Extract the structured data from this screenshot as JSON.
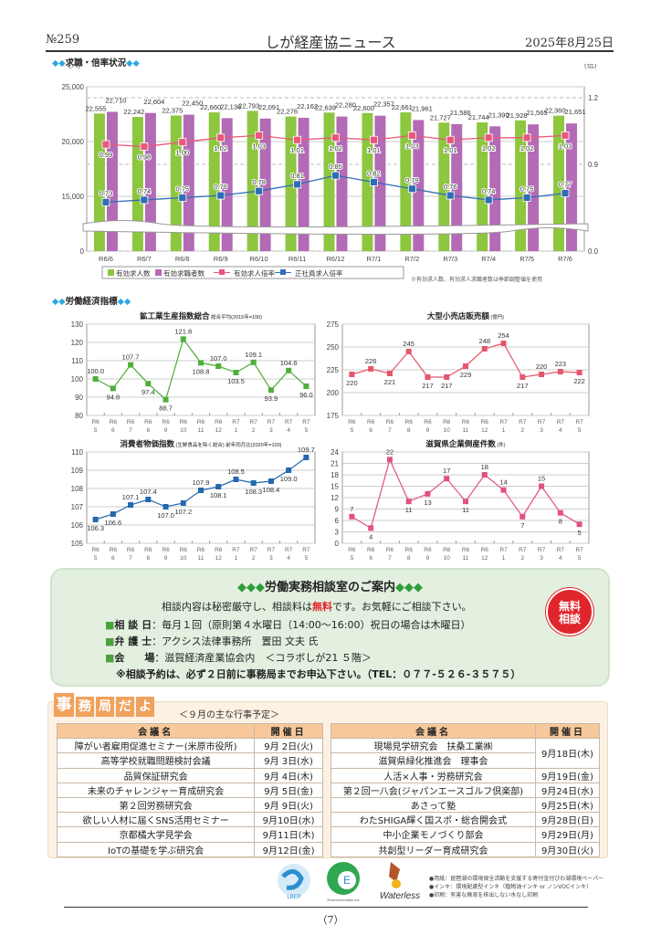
{
  "header": {
    "issue": "№259",
    "title": "しが経産協ニュース",
    "date": "2025年8月25日"
  },
  "section1": {
    "title": "求職・倍率状況"
  },
  "section2": {
    "title": "労働経済指標"
  },
  "chart_data": [
    {
      "type": "bar",
      "title": "求職・倍率状況",
      "ylabel": "(人)",
      "y2label": "(倍)",
      "ylim": [
        0,
        25000
      ],
      "y2lim": [
        0,
        1.2
      ],
      "yticks": [
        "25,000",
        "20,000",
        "15,000",
        "0"
      ],
      "y2ticks": [
        "1.2",
        "0.9",
        "0.0"
      ],
      "categories": [
        "R6/6",
        "R6/7",
        "R6/8",
        "R6/9",
        "R6/10",
        "R6/11",
        "R6/12",
        "R7/1",
        "R7/2",
        "R7/3",
        "R7/4",
        "R7/5",
        "R7/6"
      ],
      "series": [
        {
          "name": "有効求人数",
          "type": "bar",
          "color": "#8dc63f",
          "values": [
            22555,
            22242,
            22375,
            22660,
            22793,
            22276,
            22639,
            22600,
            22661,
            21727,
            21744,
            21928,
            22360
          ],
          "labels": [
            "22,555",
            "22,242",
            "22,375",
            "22,660",
            "22,793",
            "22,276",
            "22,639",
            "22,600",
            "22,661",
            "21,727",
            "21,744",
            "21,928",
            "22,360"
          ]
        },
        {
          "name": "有効求職者数",
          "type": "bar",
          "color": "#b36bb5",
          "values": [
            22710,
            22604,
            22450,
            22136,
            22091,
            22162,
            22280,
            22357,
            21961,
            21586,
            21390,
            21565,
            21651
          ],
          "labels": [
            "22,710",
            "22,604",
            "22,450",
            "22,136",
            "22,091",
            "22,162",
            "22,280",
            "22,357",
            "21,961",
            "21,586",
            "21,390",
            "21,565",
            "21,651"
          ]
        },
        {
          "name": "有効求人倍率",
          "type": "line",
          "color": "#e9577a",
          "values": [
            0.99,
            0.98,
            1.0,
            1.02,
            1.03,
            1.01,
            1.02,
            1.01,
            1.03,
            1.01,
            1.02,
            1.02,
            1.03
          ],
          "labels": [
            "0.99",
            "0.98",
            "1.00",
            "1.02",
            "1.03",
            "1.01",
            "1.02",
            "1.01",
            "1.03",
            "1.01",
            "1.02",
            "1.02",
            "1.03"
          ]
        },
        {
          "name": "正社員求人倍率",
          "type": "line",
          "color": "#2f6db5",
          "values": [
            0.73,
            0.74,
            0.75,
            0.76,
            0.78,
            0.81,
            0.85,
            0.82,
            0.79,
            0.76,
            0.74,
            0.75,
            0.77
          ],
          "labels": [
            "0.73",
            "0.74",
            "0.75",
            "0.76",
            "0.78",
            "0.81",
            "0.85",
            "0.82",
            "0.79",
            "0.76",
            "0.74",
            "0.75",
            "0.77"
          ]
        }
      ],
      "note": "※有効求人数、有効求人求職者数は季節調整値を使用"
    },
    {
      "type": "line",
      "title": "鉱工業生産指数総合",
      "subtitle": "総合平均(2015年=100)",
      "color": "#4fae3a",
      "ylim": [
        80,
        130
      ],
      "yticks": [
        130,
        120,
        110,
        100,
        90,
        80
      ],
      "categories": [
        [
          "R6",
          "5"
        ],
        [
          "R6",
          "6"
        ],
        [
          "R6",
          "7"
        ],
        [
          "R6",
          "8"
        ],
        [
          "R6",
          "9"
        ],
        [
          "R6",
          "10"
        ],
        [
          "R6",
          "11"
        ],
        [
          "R6",
          "12"
        ],
        [
          "R7",
          "1"
        ],
        [
          "R7",
          "2"
        ],
        [
          "R7",
          "3"
        ],
        [
          "R7",
          "4"
        ],
        [
          "R7",
          "5"
        ]
      ],
      "values": [
        100.0,
        94.8,
        107.7,
        97.4,
        88.7,
        121.8,
        108.8,
        107.0,
        103.5,
        109.1,
        93.9,
        104.6,
        96.0
      ],
      "labels": [
        "100.0",
        "94.8",
        "107.7",
        "97.4",
        "88.7",
        "121.8",
        "108.8",
        "107.0",
        "103.5",
        "109.1",
        "93.9",
        "104.6",
        "96.0"
      ]
    },
    {
      "type": "line",
      "title": "大型小売店販売額",
      "subtitle": "(億円)",
      "color": "#e5566b",
      "ylim": [
        175,
        275
      ],
      "yticks": [
        275,
        250,
        225,
        200,
        175
      ],
      "categories": [
        [
          "R6",
          "5"
        ],
        [
          "R6",
          "6"
        ],
        [
          "R6",
          "7"
        ],
        [
          "R6",
          "8"
        ],
        [
          "R6",
          "9"
        ],
        [
          "R6",
          "10"
        ],
        [
          "R6",
          "11"
        ],
        [
          "R6",
          "12"
        ],
        [
          "R7",
          "1"
        ],
        [
          "R7",
          "2"
        ],
        [
          "R7",
          "3"
        ],
        [
          "R7",
          "4"
        ],
        [
          "R7",
          "5"
        ]
      ],
      "values": [
        220,
        226,
        221,
        245,
        217,
        217,
        229,
        248,
        254,
        217,
        220,
        223,
        222
      ],
      "labels": [
        "220",
        "226",
        "221",
        "245",
        "217",
        "217",
        "229",
        "248",
        "254",
        "217",
        "220",
        "223",
        "222"
      ]
    },
    {
      "type": "line",
      "title": "消費者物価指数",
      "subtitle": "(生鮮食品を除く総合) 前年同月比(2020年=100)",
      "color": "#2368ad",
      "ylim": [
        105,
        110
      ],
      "yticks": [
        110,
        109,
        108,
        107,
        106,
        105
      ],
      "categories": [
        [
          "R6",
          "5"
        ],
        [
          "R6",
          "6"
        ],
        [
          "R6",
          "7"
        ],
        [
          "R6",
          "8"
        ],
        [
          "R6",
          "9"
        ],
        [
          "R6",
          "10"
        ],
        [
          "R6",
          "11"
        ],
        [
          "R6",
          "12"
        ],
        [
          "R7",
          "1"
        ],
        [
          "R7",
          "2"
        ],
        [
          "R7",
          "3"
        ],
        [
          "R7",
          "4"
        ],
        [
          "R7",
          "5"
        ]
      ],
      "values": [
        106.3,
        106.6,
        107.1,
        107.4,
        107.0,
        107.2,
        107.9,
        108.1,
        108.5,
        108.3,
        108.4,
        109.0,
        109.7
      ],
      "labels": [
        "106.3",
        "106.6",
        "107.1",
        "107.4",
        "107.0",
        "107.2",
        "107.9",
        "108.1",
        "108.5",
        "108.3",
        "108.4",
        "109.0",
        "109.7"
      ]
    },
    {
      "type": "line",
      "title": "滋賀県企業倒産件数",
      "subtitle": "(件)",
      "color": "#e24f86",
      "ylim": [
        0,
        24
      ],
      "yticks": [
        24,
        21,
        18,
        15,
        12,
        9,
        6,
        3,
        0
      ],
      "categories": [
        [
          "R6",
          "5"
        ],
        [
          "R6",
          "6"
        ],
        [
          "R6",
          "7"
        ],
        [
          "R6",
          "8"
        ],
        [
          "R6",
          "9"
        ],
        [
          "R6",
          "10"
        ],
        [
          "R6",
          "11"
        ],
        [
          "R6",
          "12"
        ],
        [
          "R7",
          "1"
        ],
        [
          "R7",
          "2"
        ],
        [
          "R7",
          "3"
        ],
        [
          "R7",
          "4"
        ],
        [
          "R7",
          "5"
        ]
      ],
      "values": [
        7,
        4,
        22,
        11,
        13,
        17,
        11,
        18,
        14,
        7,
        15,
        8,
        5
      ],
      "labels": [
        "7",
        "4",
        "22",
        "11",
        "13",
        "17",
        "11",
        "18",
        "14",
        "7",
        "15",
        "8",
        "5"
      ]
    }
  ],
  "consult": {
    "title": "労働実務相談室のご案内",
    "intro_a": "相談内容は秘密厳守し、相談料は",
    "intro_free": "無料",
    "intro_b": "です。お気軽にご相談下さい。",
    "rows": [
      {
        "label": "相 談 日",
        "value": "：毎月１回（原則第４水曜日（14:00〜16:00）祝日の場合は木曜日）"
      },
      {
        "label": "弁 護 士",
        "value": "：アクシス法律事務所　置田 文夫 氏"
      },
      {
        "label": "会　　場",
        "value": "：滋賀経済産業協会内　＜コラボしが21 ５階＞"
      }
    ],
    "notice": "※相談予約は、必ず２日前に事務局までお申込下さい。（TEL：０７７-５２６-３５７５）",
    "badge_line1": "無料",
    "badge_line2": "相談"
  },
  "schedule": {
    "tab_chars": [
      "事",
      "務",
      "局",
      "だ",
      "よ",
      "り"
    ],
    "subtitle": "＜９月の主な行事予定＞",
    "col_name": "会議名",
    "col_date": "開催日",
    "left": [
      {
        "name": "障がい者雇用促進セミナー(米原市役所)",
        "date": "9月 2日(火)"
      },
      {
        "name": "高等学校就職問題検討会議",
        "date": "9月 3日(水)"
      },
      {
        "name": "品質保証研究会",
        "date": "9月 4日(木)"
      },
      {
        "name": "未来のチャレンジャー育成研究会",
        "date": "9月 5日(金)"
      },
      {
        "name": "第２回労務研究会",
        "date": "9月 9日(火)"
      },
      {
        "name": "欲しい人材に届くSNS活用セミナー",
        "date": "9月10日(水)"
      },
      {
        "name": "京都橘大学見学会",
        "date": "9月11日(木)"
      },
      {
        "name": "IoTの基礎を学ぶ研究会",
        "date": "9月12日(金)"
      }
    ],
    "right": [
      {
        "name": "現場見学研究会　扶桑工業㈱",
        "date": "9月18日(木)"
      },
      {
        "name": "滋賀県緑化推進会　理事会",
        "date": null
      },
      {
        "name": "人活×人事・労務研究会",
        "date": "9月19日(金)"
      },
      {
        "name": "第２回一八会(ジャパンエースゴルフ倶楽部)",
        "date": "9月24日(水)"
      },
      {
        "name": "あさって塾",
        "date": "9月25日(木)"
      },
      {
        "name": "わたSHIGA輝く国スポ・総合開会式",
        "date": "9月28日(日)"
      },
      {
        "name": "中小企業モノづくり部会",
        "date": "9月29日(月)"
      },
      {
        "name": "共創型リーダー育成研究会",
        "date": "9月30日(火)"
      }
    ]
  },
  "footer": {
    "logo1": "びわ湖環境ペーパー LBEP",
    "logo2": "Environmentally Ink",
    "logo3": "Waterless",
    "notes": [
      "●用紙：琵琶湖の環境保全活動を支援する寄付金付びわ湖環境ペーパー",
      "●インキ：環境配慮型インキ（植物油インキ or ノンVOCインキ）",
      "●印刷：有害な廃液を排出しない水なし印刷"
    ],
    "page": "（7）"
  }
}
